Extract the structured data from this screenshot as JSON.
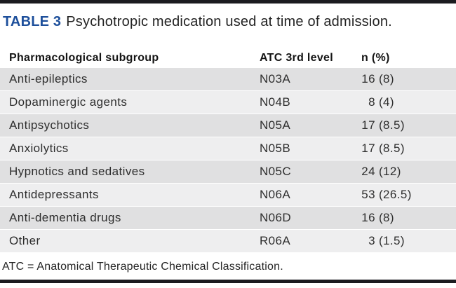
{
  "caption": {
    "label": "TABLE 3",
    "text": "Psychotropic medication used at time of admission."
  },
  "table": {
    "columns": [
      "Pharmacological subgroup",
      "ATC 3rd level",
      "n (%)"
    ],
    "rows": [
      {
        "subgroup": "Anti-epileptics",
        "atc": "N03A",
        "n": "16",
        "pct": "(8)"
      },
      {
        "subgroup": "Dopaminergic agents",
        "atc": "N04B",
        "n": "8",
        "pct": "(4)"
      },
      {
        "subgroup": "Antipsychotics",
        "atc": "N05A",
        "n": "17",
        "pct": "(8.5)"
      },
      {
        "subgroup": "Anxiolytics",
        "atc": "N05B",
        "n": "17",
        "pct": "(8.5)"
      },
      {
        "subgroup": "Hypnotics and sedatives",
        "atc": "N05C",
        "n": "24",
        "pct": "(12)"
      },
      {
        "subgroup": "Antidepressants",
        "atc": "N06A",
        "n": "53",
        "pct": "(26.5)"
      },
      {
        "subgroup": "Anti-dementia drugs",
        "atc": "N06D",
        "n": "16",
        "pct": "(8)"
      },
      {
        "subgroup": "Other",
        "atc": "R06A",
        "n": "3",
        "pct": "(1.5)"
      }
    ]
  },
  "footnote": "ATC = Anatomical Therapeutic Chemical Classification.",
  "chart_data": {
    "type": "table",
    "title": "TABLE 3 Psychotropic medication used at time of admission.",
    "columns": [
      "Pharmacological subgroup",
      "ATC 3rd level",
      "n (%)"
    ],
    "categories": [
      "Anti-epileptics",
      "Dopaminergic agents",
      "Antipsychotics",
      "Anxiolytics",
      "Hypnotics and sedatives",
      "Antidepressants",
      "Anti-dementia drugs",
      "Other"
    ],
    "atc_codes": [
      "N03A",
      "N04B",
      "N05A",
      "N05B",
      "N05C",
      "N06A",
      "N06D",
      "R06A"
    ],
    "n_values": [
      16,
      8,
      17,
      17,
      24,
      53,
      16,
      3
    ],
    "percent_values": [
      8,
      4,
      8.5,
      8.5,
      12,
      26.5,
      8,
      1.5
    ]
  },
  "colors": {
    "accent_blue": "#1d4f9b",
    "rule_dark": "#1b1c20",
    "row_shade_dark": "#e0e0e1",
    "row_shade_light": "#eeeeef"
  }
}
